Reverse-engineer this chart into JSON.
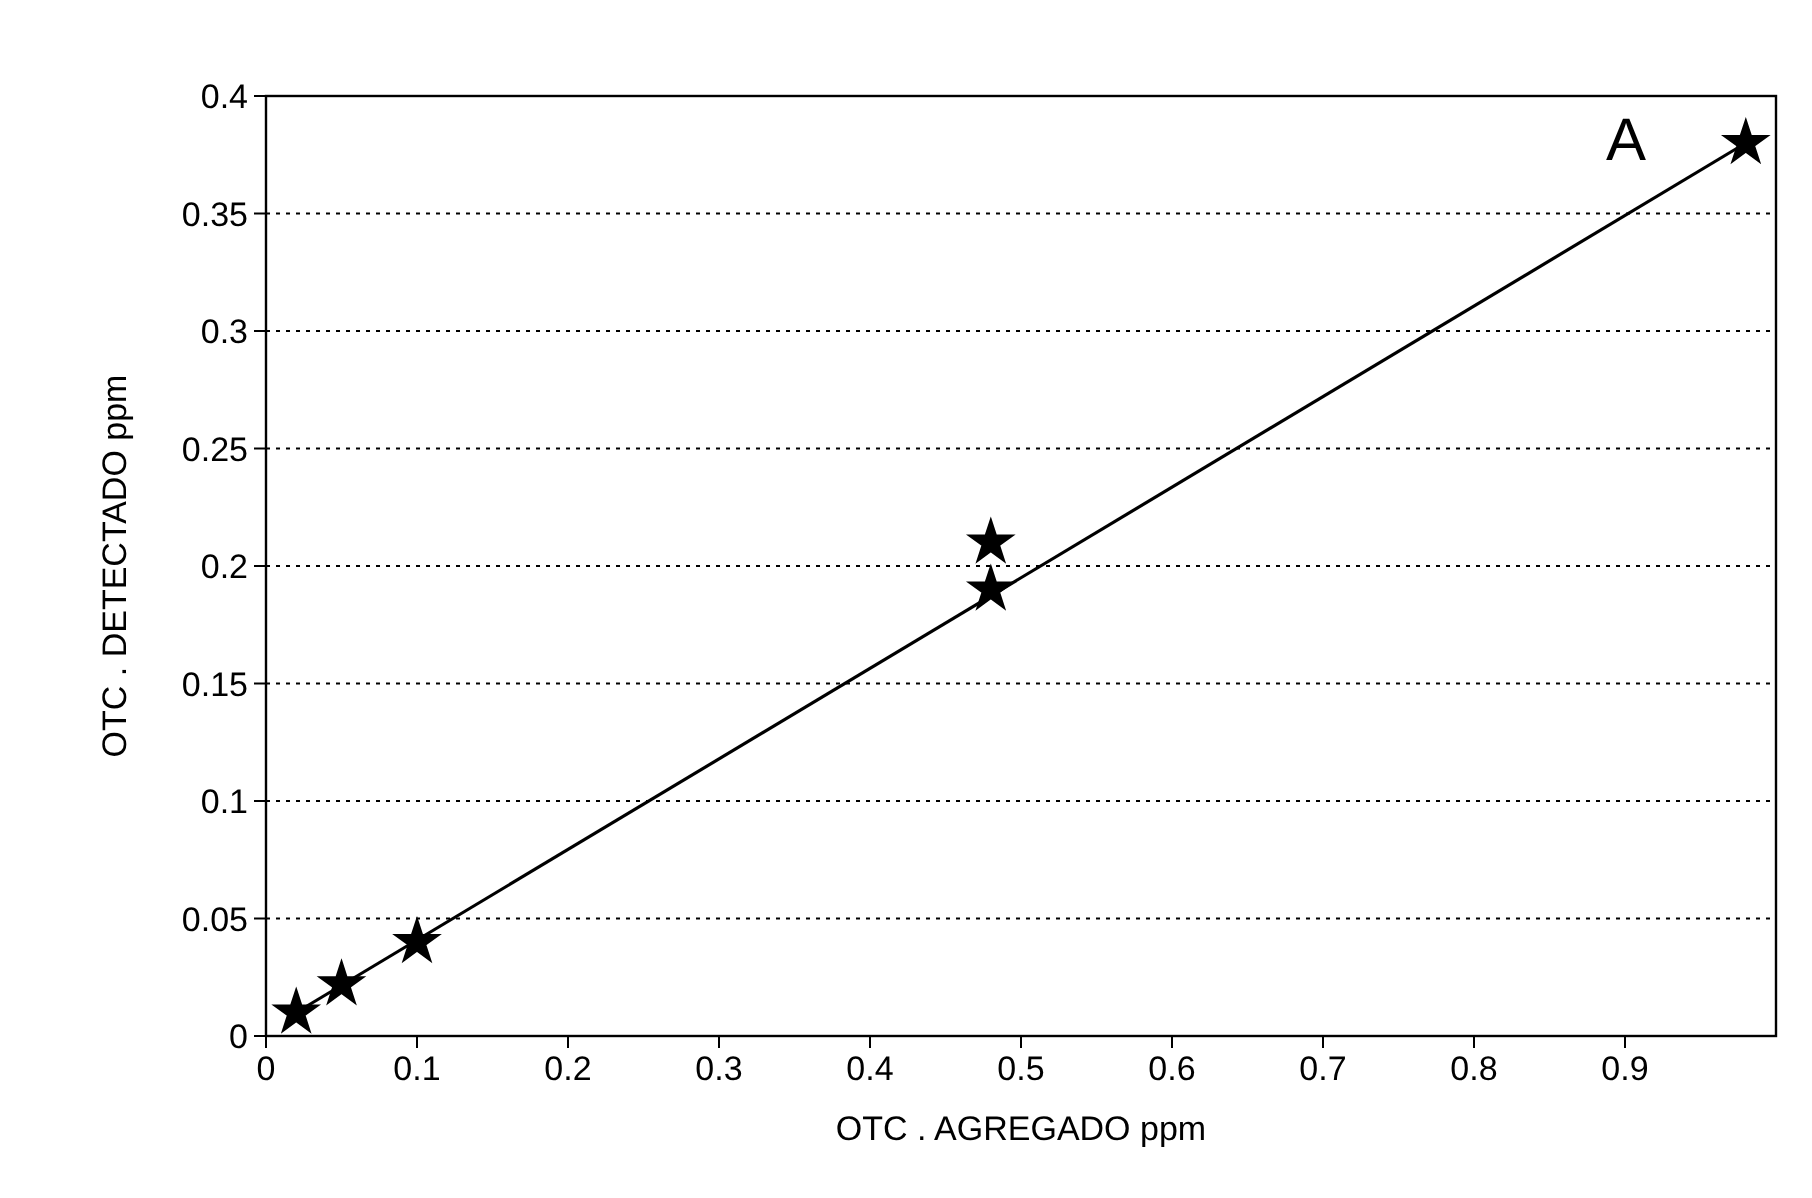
{
  "chart_data": {
    "type": "scatter",
    "title": "A",
    "xlabel": "OTC . AGREGADO  ppm",
    "ylabel": "OTC . DETECTADO  ppm",
    "xlim": [
      0,
      1
    ],
    "xticks": [
      0,
      0.1,
      0.2,
      0.3,
      0.4,
      0.5,
      0.6,
      0.7,
      0.8,
      0.9
    ],
    "ylim": [
      0,
      0.4
    ],
    "yticks": [
      0,
      0.05,
      0.1,
      0.15,
      0.2,
      0.25,
      0.3,
      0.35,
      0.4
    ],
    "grid": "y",
    "marker": "star",
    "series": [
      {
        "color": "#000000",
        "x": [
          0.02,
          0.05,
          0.1,
          0.48,
          0.48,
          0.98
        ],
        "values": [
          0.01,
          0.022,
          0.04,
          0.19,
          0.21,
          0.38
        ]
      },
      {
        "type": "line",
        "color": "#000000",
        "line_style": "solid",
        "marker": "none",
        "x": [
          0.02,
          0.98
        ],
        "values": [
          0.01,
          0.38
        ]
      }
    ]
  }
}
